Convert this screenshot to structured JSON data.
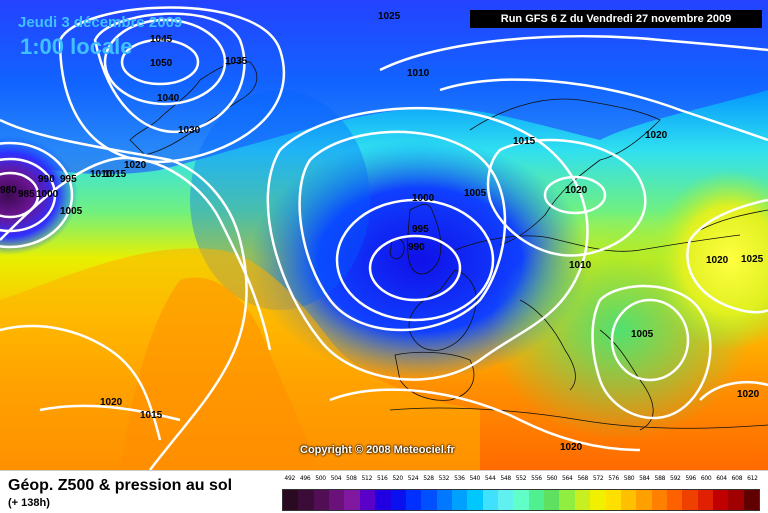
{
  "map": {
    "date": "Jeudi 3 décembre 2009",
    "local_time": "1:00 locale",
    "run_info": "Run GFS 6 Z du Vendredi 27 novembre 2009",
    "copyright": "Copyright © 2008 Meteociel.fr",
    "isobar_labels": [
      "1045",
      "1050",
      "1040",
      "1035",
      "1030",
      "1025",
      "1020",
      "1015",
      "1010",
      "1005",
      "1000",
      "995",
      "990",
      "985",
      "980",
      "1020",
      "1015",
      "1010",
      "1005",
      "1000",
      "995",
      "990",
      "1020",
      "1025",
      "1020",
      "1010",
      "1005",
      "1020",
      "1020",
      "1015",
      "1020"
    ]
  },
  "legend": {
    "title": "Géop. Z500 & pression au sol",
    "subtitle": "(+ 138h)",
    "scale_values": [
      "492",
      "496",
      "500",
      "504",
      "508",
      "512",
      "516",
      "520",
      "524",
      "528",
      "532",
      "536",
      "540",
      "544",
      "548",
      "552",
      "556",
      "560",
      "564",
      "568",
      "572",
      "576",
      "580",
      "584",
      "588",
      "592",
      "596",
      "600",
      "604",
      "608",
      "612"
    ],
    "scale_colors": [
      "#2a0a20",
      "#3c0c38",
      "#520e55",
      "#6a127a",
      "#8018a0",
      "#5a00c8",
      "#2000e0",
      "#0a10f0",
      "#0030ff",
      "#0050ff",
      "#0078ff",
      "#00a0ff",
      "#00c8ff",
      "#40e0ff",
      "#60f0f0",
      "#60ffc8",
      "#50f090",
      "#60e060",
      "#90ee40",
      "#c8f020",
      "#f0f000",
      "#ffe000",
      "#ffc000",
      "#ffa000",
      "#ff8000",
      "#ff6000",
      "#f04000",
      "#e02000",
      "#c00000",
      "#a00000",
      "#600000"
    ]
  }
}
